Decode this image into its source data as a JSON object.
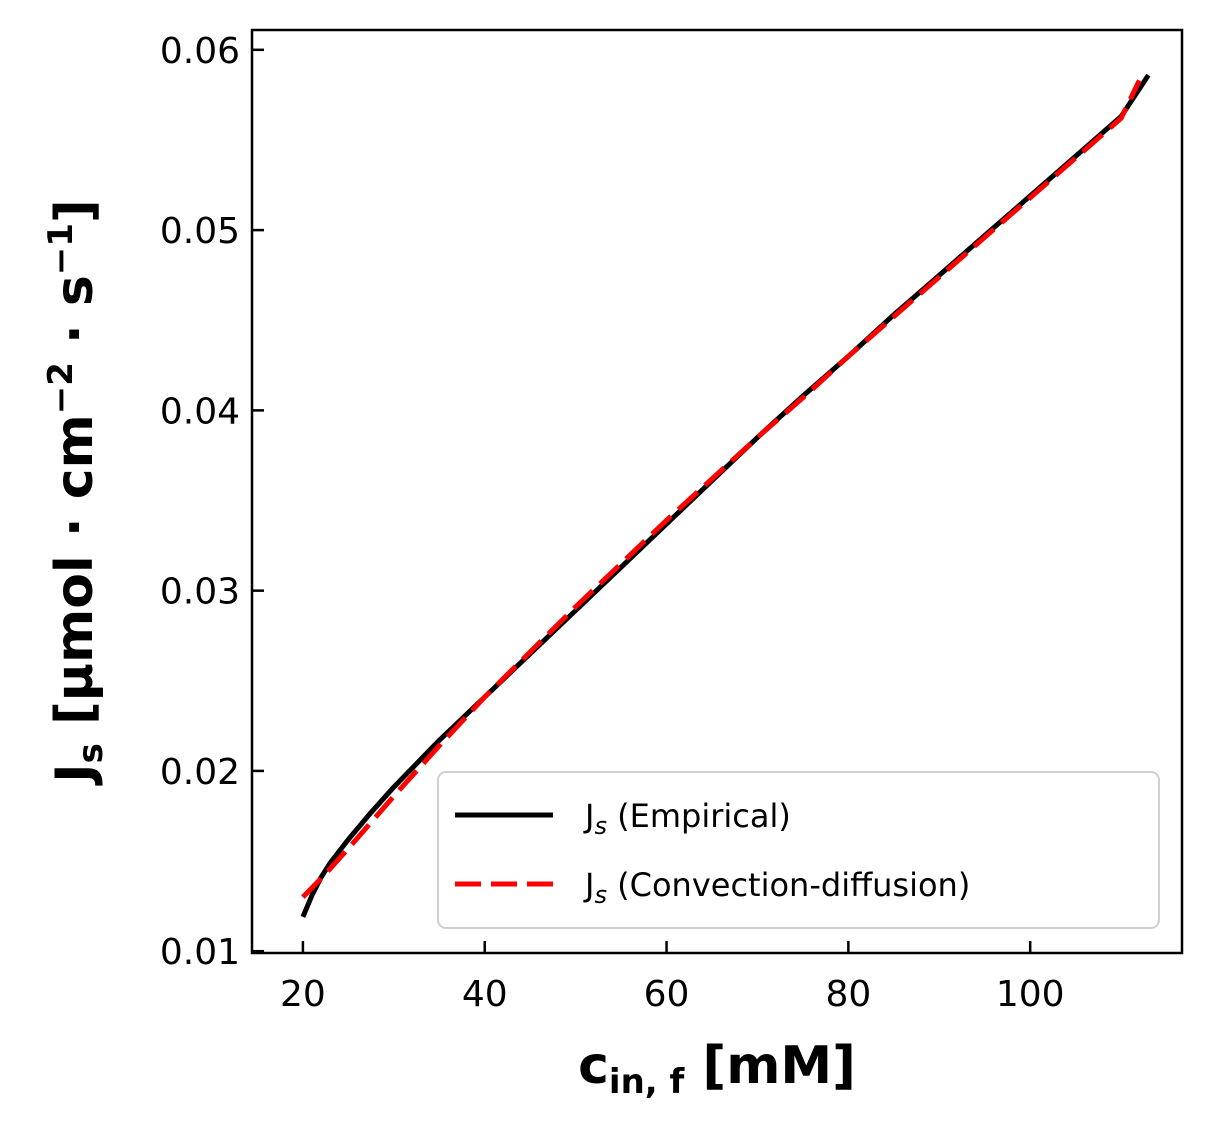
{
  "chart_data": {
    "type": "line",
    "xlabel": "c",
    "xlabel_sub": "in, f",
    "xlabel_unit": " [mM]",
    "ylabel": "J",
    "ylabel_sub": "s",
    "ylabel_unit": " [μmol · cm",
    "ylabel_exp1": "−2",
    "ylabel_mid": " · s",
    "ylabel_exp2": "−1",
    "ylabel_end": "]",
    "xlim": [
      14.4,
      116.7
    ],
    "ylim": [
      0.0099,
      0.0611
    ],
    "xticks": [
      20,
      40,
      60,
      80,
      100
    ],
    "xtick_labels": [
      "20",
      "40",
      "60",
      "80",
      "100"
    ],
    "yticks": [
      0.01,
      0.02,
      0.03,
      0.04,
      0.05,
      0.06
    ],
    "ytick_labels": [
      "0.01",
      "0.02",
      "0.03",
      "0.04",
      "0.05",
      "0.06"
    ],
    "grid": false,
    "legend_position": "lower-right",
    "series": [
      {
        "name": "J",
        "name_sub": "s",
        "name_rest": " (Empirical)",
        "color": "#000000",
        "dash": "solid",
        "x": [
          20,
          21,
          22,
          23,
          25,
          27.5,
          30,
          35,
          40,
          45,
          50,
          55,
          60,
          65,
          70,
          75,
          80,
          85,
          90,
          95,
          100,
          105,
          110,
          113
        ],
        "y": [
          0.0119,
          0.0131,
          0.0141,
          0.0149,
          0.0162,
          0.0177,
          0.0191,
          0.0217,
          0.0241,
          0.0265,
          0.0289,
          0.0313,
          0.0337,
          0.0361,
          0.0385,
          0.0408,
          0.043,
          0.0453,
          0.0475,
          0.0497,
          0.0519,
          0.0541,
          0.0563,
          0.0586
        ]
      },
      {
        "name": "J",
        "name_sub": "s",
        "name_rest": " (Convection-diffusion)",
        "color": "#ff0000",
        "dash": "dashed",
        "x": [
          20,
          22.5,
          25,
          30,
          35,
          40,
          45,
          50,
          55,
          60,
          65,
          70,
          75,
          80,
          85,
          90,
          95,
          100,
          105,
          110,
          112
        ],
        "y": [
          0.013,
          0.0143,
          0.0157,
          0.0186,
          0.0214,
          0.0241,
          0.0266,
          0.0291,
          0.0315,
          0.0339,
          0.0362,
          0.0385,
          0.0407,
          0.043,
          0.0452,
          0.0474,
          0.0496,
          0.0518,
          0.054,
          0.0562,
          0.0583
        ]
      }
    ]
  }
}
